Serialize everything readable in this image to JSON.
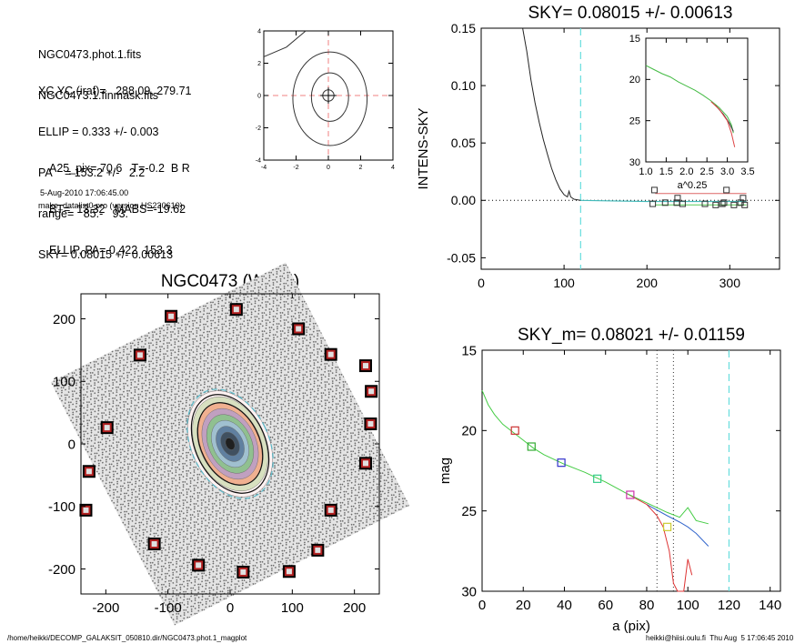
{
  "info": {
    "files": [
      "NGC0473.phot.1.fits",
      "NGC0473.1.finmask.fits"
    ],
    "params": [
      "XC,YC (iraf)=   288.09, 279.71",
      "ELLIP = 0.333 +/- 0.003",
      "PA    = 153.2 +/-   2.2",
      "range=   85.-   93.",
      "SKY= 0.08015 +/- 0.00613"
    ],
    "photometry": [
      "A25_pix= 70.6   T=-0.2  B R",
      "BT=  13.32   MABS=-19.62",
      "ELLIP, PA= 0.422  153.3"
    ],
    "date": "5-Aug-2010 17:06:45.00",
    "program": "make_datalist0.pro (version HS230610)"
  },
  "footer": {
    "left": "/home/heikki/DECOMP_GALAKSIT_050810.dir/NGC0473.phot.1_magplot",
    "right": "heikki@hiisi.oulu.fi  Thu Aug  5 17:06:45 2010"
  },
  "chart_data": [
    {
      "type": "line",
      "name": "center-contour",
      "xlim": [
        -4,
        4
      ],
      "ylim": [
        -4,
        4
      ],
      "x_ticks": [
        "-4",
        "-2",
        "0",
        "2",
        "4"
      ],
      "y_ticks": [
        "-4",
        "-2",
        "0",
        "2",
        "4"
      ],
      "contours": [
        {
          "center": [
            0.0,
            0.0
          ],
          "rx": 0.35,
          "ry": 0.35
        },
        {
          "center": [
            0.1,
            -0.1
          ],
          "rx": 1.15,
          "ry": 1.5
        },
        {
          "center": [
            0.1,
            -0.2
          ],
          "rx": 2.3,
          "ry": 2.9
        }
      ],
      "corner_contour": [
        [
          -4,
          2.4
        ],
        [
          -2.6,
          3.0
        ],
        [
          -1.4,
          4
        ]
      ]
    },
    {
      "type": "line",
      "title": "SKY= 0.08015 +/- 0.00613",
      "ylabel": "INTENS-SKY",
      "xlim": [
        0,
        360
      ],
      "ylim": [
        -0.06,
        0.15
      ],
      "x_ticks": [
        "0",
        "100",
        "200",
        "300"
      ],
      "y_ticks": [
        "-0.05",
        "0.00",
        "0.05",
        "0.10",
        "0.15"
      ],
      "cyan_line_x": 120,
      "profile": [
        [
          50,
          0.15
        ],
        [
          55,
          0.13
        ],
        [
          60,
          0.105
        ],
        [
          65,
          0.085
        ],
        [
          70,
          0.068
        ],
        [
          75,
          0.053
        ],
        [
          80,
          0.04
        ],
        [
          85,
          0.028
        ],
        [
          90,
          0.018
        ],
        [
          95,
          0.01
        ],
        [
          100,
          0.005
        ],
        [
          104,
          0.003
        ],
        [
          106,
          0.008
        ],
        [
          108,
          0.003
        ],
        [
          112,
          0.001
        ],
        [
          120,
          0.0
        ]
      ],
      "sky_points": [
        [
          207,
          -0.003
        ],
        [
          209,
          0.009
        ],
        [
          222,
          -0.002
        ],
        [
          236,
          -0.002
        ],
        [
          237,
          0.002
        ],
        [
          243,
          -0.003
        ],
        [
          270,
          -0.003
        ],
        [
          283,
          -0.004
        ],
        [
          291,
          -0.003
        ],
        [
          293,
          -0.002
        ],
        [
          296,
          0.009
        ],
        [
          305,
          -0.004
        ],
        [
          313,
          -0.002
        ],
        [
          316,
          0.002
        ],
        [
          318,
          -0.004
        ]
      ],
      "inset": {
        "xlabel": "a^0.25",
        "xlim": [
          1.0,
          3.5
        ],
        "ylim": [
          30,
          15
        ],
        "x_ticks": [
          "1.0",
          "1.5",
          "2.0",
          "2.5",
          "3.0",
          "3.5"
        ],
        "y_ticks": [
          "15",
          "20",
          "25",
          "30"
        ],
        "green": [
          [
            1.0,
            18.3
          ],
          [
            1.2,
            18.8
          ],
          [
            1.4,
            19.3
          ],
          [
            1.6,
            19.7
          ],
          [
            1.8,
            20.3
          ],
          [
            2.0,
            20.8
          ],
          [
            2.2,
            21.3
          ],
          [
            2.4,
            21.9
          ],
          [
            2.6,
            22.6
          ],
          [
            2.8,
            23.4
          ],
          [
            3.0,
            24.5
          ],
          [
            3.1,
            25.5
          ],
          [
            3.15,
            26.5
          ]
        ],
        "red": [
          [
            2.6,
            22.7
          ],
          [
            2.8,
            23.6
          ],
          [
            3.0,
            25.0
          ],
          [
            3.1,
            26.5
          ],
          [
            3.18,
            28.2
          ]
        ],
        "black": [
          [
            2.7,
            23.1
          ],
          [
            2.9,
            24.2
          ],
          [
            3.05,
            25.3
          ],
          [
            3.15,
            26.3
          ]
        ]
      }
    },
    {
      "type": "scatter",
      "title": "NGC0473 (Warm)",
      "xlim": [
        -240,
        240
      ],
      "ylim": [
        -240,
        240
      ],
      "x_ticks": [
        "-200",
        "-100",
        "0",
        "100",
        "200"
      ],
      "y_ticks": [
        "-200",
        "-100",
        "0",
        "100",
        "200"
      ],
      "sky_boxes": [
        [
          -95,
          204
        ],
        [
          10,
          215
        ],
        [
          110,
          184
        ],
        [
          -145,
          142
        ],
        [
          162,
          143
        ],
        [
          218,
          125
        ],
        [
          227,
          84
        ],
        [
          -198,
          26
        ],
        [
          226,
          32
        ],
        [
          -227,
          -44
        ],
        [
          218,
          -31
        ],
        [
          -232,
          -106
        ],
        [
          162,
          -106
        ],
        [
          -122,
          -160
        ],
        [
          141,
          -170
        ],
        [
          -51,
          -194
        ],
        [
          21,
          -205
        ],
        [
          95,
          -204
        ]
      ],
      "ellipses": [
        {
          "a": 70,
          "b": 47,
          "pa_deg": -26
        },
        {
          "a": 84,
          "b": 56,
          "pa_deg": -26
        },
        {
          "a": 93,
          "b": 62,
          "pa_deg": -26
        }
      ]
    },
    {
      "type": "line",
      "title": "SKY_m=  0.08021 +/- 0.01159",
      "xlabel": "a (pix)",
      "ylabel": "mag",
      "xlim": [
        0,
        145
      ],
      "ylim": [
        30,
        15
      ],
      "x_ticks": [
        "0",
        "20",
        "40",
        "60",
        "80",
        "100",
        "120",
        "140"
      ],
      "y_ticks": [
        "15",
        "20",
        "25",
        "30"
      ],
      "dotted_x": [
        85,
        93
      ],
      "cyan_x": 120,
      "green": [
        [
          0,
          17.5
        ],
        [
          3,
          18.4
        ],
        [
          6,
          19.0
        ],
        [
          10,
          19.6
        ],
        [
          15,
          20.1
        ],
        [
          20,
          20.6
        ],
        [
          25,
          21.1
        ],
        [
          30,
          21.5
        ],
        [
          40,
          22.1
        ],
        [
          50,
          22.6
        ],
        [
          60,
          23.2
        ],
        [
          70,
          23.9
        ],
        [
          80,
          24.5
        ],
        [
          90,
          25.1
        ],
        [
          96,
          25.4
        ],
        [
          100,
          24.8
        ],
        [
          104,
          25.6
        ],
        [
          110,
          25.8
        ]
      ],
      "red": [
        [
          70,
          23.9
        ],
        [
          80,
          24.6
        ],
        [
          85,
          25.3
        ],
        [
          88,
          26.0
        ],
        [
          91,
          27.5
        ],
        [
          93,
          29.5
        ],
        [
          95,
          30
        ],
        [
          98,
          30
        ],
        [
          100,
          28.0
        ],
        [
          102,
          29.0
        ]
      ],
      "blue": [
        [
          80,
          24.6
        ],
        [
          90,
          25.3
        ],
        [
          96,
          25.7
        ],
        [
          100,
          26.0
        ],
        [
          104,
          26.4
        ],
        [
          110,
          27.2
        ]
      ],
      "squares": [
        {
          "x": 16,
          "y": 20.0,
          "color": "#cc3333"
        },
        {
          "x": 24,
          "y": 21.0,
          "color": "#33aa33"
        },
        {
          "x": 38.5,
          "y": 22.0,
          "color": "#3333cc"
        },
        {
          "x": 56,
          "y": 23.0,
          "color": "#33cc88"
        },
        {
          "x": 72,
          "y": 24.0,
          "color": "#cc33aa"
        },
        {
          "x": 90,
          "y": 26.0,
          "color": "#cccc33"
        }
      ]
    }
  ]
}
